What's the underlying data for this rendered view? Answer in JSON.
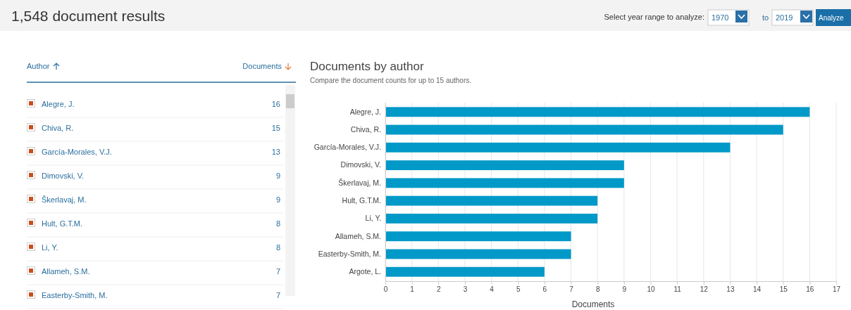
{
  "chart_data": [
    {
      "type": "other",
      "title": "1,548 document results",
      "annotations": [
        "Select year range to analyze:",
        "1970",
        "to",
        "2019",
        "Analyze",
        "Author",
        "Documents"
      ],
      "categories": [
        "Alegre, J.",
        "Chiva, R.",
        "García-Morales, V.J.",
        "Dimovski, V.",
        "Škerlavaj, M.",
        "Hult, G.T.M.",
        "Li, Y.",
        "Allameh, S.M.",
        "Easterby-Smith, M."
      ],
      "values": [
        16,
        15,
        13,
        9,
        9,
        8,
        8,
        7,
        7
      ],
      "data_labels": true,
      "color": "#c8501e"
    },
    {
      "type": "bar",
      "orientation": "horizontal",
      "title": "Documents by author",
      "subtitle": "Compare the document counts for up to 15 authors.",
      "xlabel": "Documents",
      "categories": [
        "Alegre, J.",
        "Chiva, R.",
        "García-Morales, V.J.",
        "Dimovski, V.",
        "Škerlavaj, M.",
        "Hult, G.T.M.",
        "Li, Y.",
        "Allameh, S.M.",
        "Easterby-Smith, M.",
        "Argote, L."
      ],
      "values": [
        16,
        15,
        13,
        9,
        9,
        8,
        8,
        7,
        7,
        6
      ],
      "color": "#0099c8",
      "xlim": [
        0,
        17
      ],
      "xticks": [
        0,
        1,
        2,
        3,
        4,
        5,
        6,
        7,
        8,
        9,
        10,
        11,
        12,
        13,
        14,
        15,
        16,
        17
      ],
      "grid": "x"
    }
  ]
}
